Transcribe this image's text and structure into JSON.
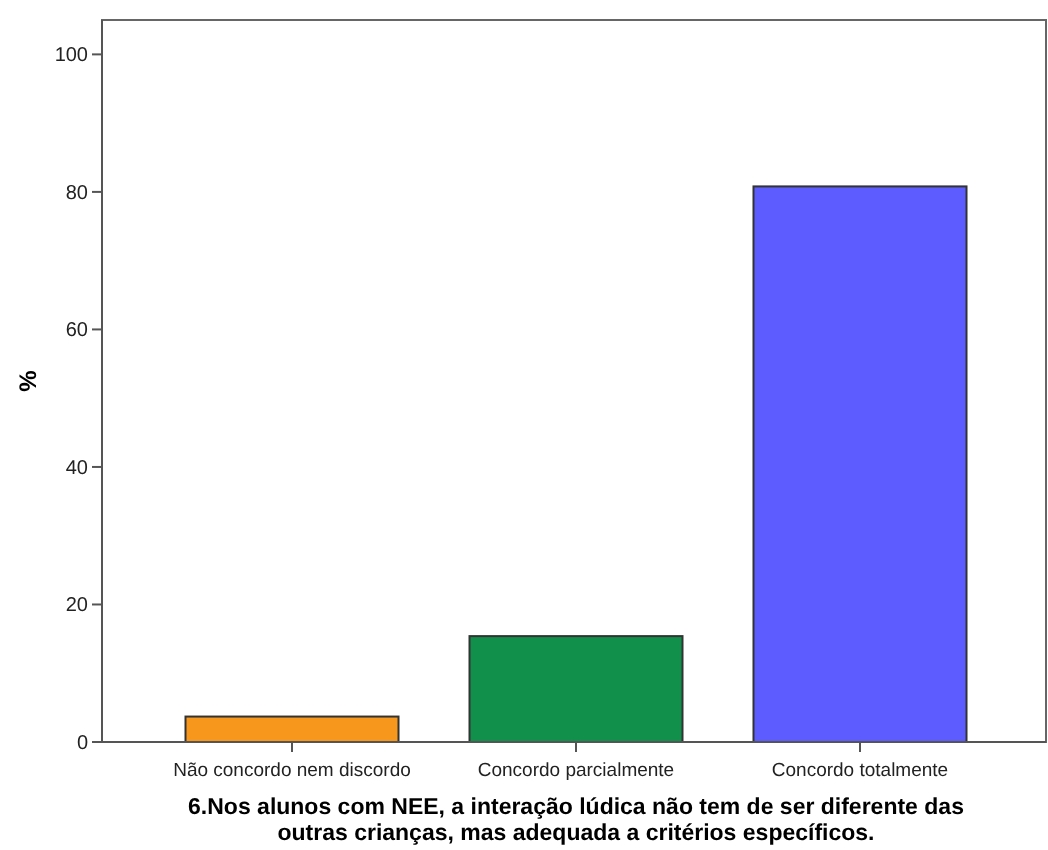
{
  "chart_data": {
    "type": "bar",
    "xlabel": "6.Nos alunos com NEE, a interação lúdica não tem de ser diferente das outras crianças, mas adequada a critérios específicos.",
    "ylabel": "%",
    "categories": [
      "Não concordo nem discordo",
      "Concordo parcialmente",
      "Concordo totalmente"
    ],
    "values": [
      3.7,
      15.4,
      80.8
    ],
    "colors": [
      "#f7981d",
      "#10904a",
      "#5d5dff"
    ],
    "ylim": [
      0,
      105
    ],
    "yticks": [
      0,
      20,
      40,
      60,
      80,
      100
    ],
    "grid": false
  }
}
